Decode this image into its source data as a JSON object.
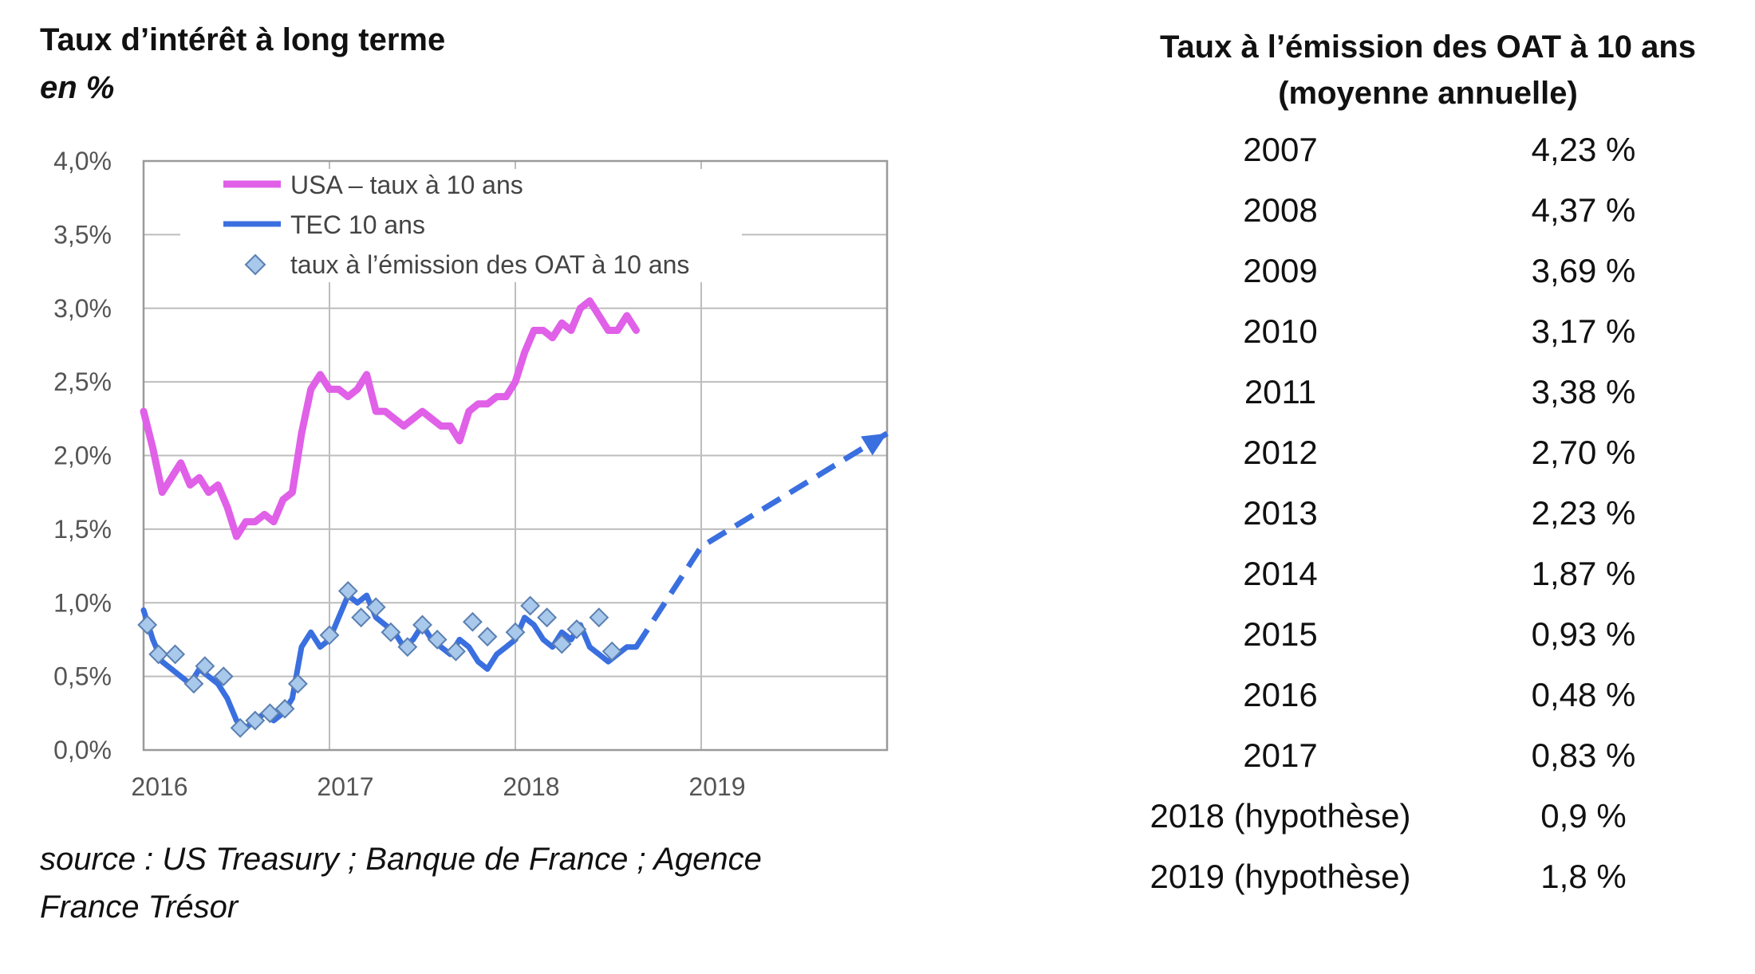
{
  "left": {
    "title": "Taux d’intérêt à long terme",
    "subtitle": "en %",
    "source_line1": "source :  US  Treasury ;  Banque  de  France ;  Agence",
    "source_line2": "France Trésor"
  },
  "chart_data": {
    "type": "line",
    "ylim": [
      0,
      4.0
    ],
    "xlim": [
      2016,
      2020
    ],
    "y_ticks": [
      "4,0%",
      "3,5%",
      "3,0%",
      "2,5%",
      "2,0%",
      "1,5%",
      "1,0%",
      "0,5%",
      "0,0%"
    ],
    "x_ticks": [
      "2016",
      "2017",
      "2018",
      "2019"
    ],
    "grid": true,
    "legend_position": "top-left",
    "colors": {
      "usa": "#e060e8",
      "tec": "#3a6fe0",
      "oat_marker": "#a8c8ec"
    },
    "series": [
      {
        "name": "USA – taux à 10 ans",
        "style": "solid",
        "points": [
          [
            2016.0,
            2.3
          ],
          [
            2016.05,
            2.05
          ],
          [
            2016.1,
            1.75
          ],
          [
            2016.15,
            1.85
          ],
          [
            2016.2,
            1.95
          ],
          [
            2016.25,
            1.8
          ],
          [
            2016.3,
            1.85
          ],
          [
            2016.35,
            1.75
          ],
          [
            2016.4,
            1.8
          ],
          [
            2016.45,
            1.65
          ],
          [
            2016.5,
            1.45
          ],
          [
            2016.55,
            1.55
          ],
          [
            2016.6,
            1.55
          ],
          [
            2016.65,
            1.6
          ],
          [
            2016.7,
            1.55
          ],
          [
            2016.75,
            1.7
          ],
          [
            2016.8,
            1.75
          ],
          [
            2016.85,
            2.15
          ],
          [
            2016.9,
            2.45
          ],
          [
            2016.95,
            2.55
          ],
          [
            2017.0,
            2.45
          ],
          [
            2017.05,
            2.45
          ],
          [
            2017.1,
            2.4
          ],
          [
            2017.15,
            2.45
          ],
          [
            2017.2,
            2.55
          ],
          [
            2017.25,
            2.3
          ],
          [
            2017.3,
            2.3
          ],
          [
            2017.35,
            2.25
          ],
          [
            2017.4,
            2.2
          ],
          [
            2017.45,
            2.25
          ],
          [
            2017.5,
            2.3
          ],
          [
            2017.55,
            2.25
          ],
          [
            2017.6,
            2.2
          ],
          [
            2017.65,
            2.2
          ],
          [
            2017.7,
            2.1
          ],
          [
            2017.75,
            2.3
          ],
          [
            2017.8,
            2.35
          ],
          [
            2017.85,
            2.35
          ],
          [
            2017.9,
            2.4
          ],
          [
            2017.95,
            2.4
          ],
          [
            2018.0,
            2.5
          ],
          [
            2018.05,
            2.7
          ],
          [
            2018.1,
            2.85
          ],
          [
            2018.15,
            2.85
          ],
          [
            2018.2,
            2.8
          ],
          [
            2018.25,
            2.9
          ],
          [
            2018.3,
            2.85
          ],
          [
            2018.35,
            3.0
          ],
          [
            2018.4,
            3.05
          ],
          [
            2018.45,
            2.95
          ],
          [
            2018.5,
            2.85
          ],
          [
            2018.55,
            2.85
          ],
          [
            2018.6,
            2.95
          ],
          [
            2018.65,
            2.85
          ]
        ]
      },
      {
        "name": "TEC 10 ans",
        "style": "solid",
        "points": [
          [
            2016.0,
            0.95
          ],
          [
            2016.05,
            0.75
          ],
          [
            2016.1,
            0.6
          ],
          [
            2016.15,
            0.55
          ],
          [
            2016.2,
            0.5
          ],
          [
            2016.25,
            0.45
          ],
          [
            2016.3,
            0.55
          ],
          [
            2016.35,
            0.5
          ],
          [
            2016.4,
            0.45
          ],
          [
            2016.45,
            0.35
          ],
          [
            2016.5,
            0.2
          ],
          [
            2016.55,
            0.15
          ],
          [
            2016.6,
            0.2
          ],
          [
            2016.65,
            0.25
          ],
          [
            2016.7,
            0.2
          ],
          [
            2016.75,
            0.25
          ],
          [
            2016.8,
            0.35
          ],
          [
            2016.85,
            0.7
          ],
          [
            2016.9,
            0.8
          ],
          [
            2016.95,
            0.7
          ],
          [
            2017.0,
            0.75
          ],
          [
            2017.05,
            0.9
          ],
          [
            2017.1,
            1.05
          ],
          [
            2017.15,
            1.0
          ],
          [
            2017.2,
            1.05
          ],
          [
            2017.25,
            0.9
          ],
          [
            2017.3,
            0.85
          ],
          [
            2017.35,
            0.8
          ],
          [
            2017.4,
            0.7
          ],
          [
            2017.45,
            0.75
          ],
          [
            2017.5,
            0.85
          ],
          [
            2017.55,
            0.75
          ],
          [
            2017.6,
            0.7
          ],
          [
            2017.65,
            0.65
          ],
          [
            2017.7,
            0.75
          ],
          [
            2017.75,
            0.7
          ],
          [
            2017.8,
            0.6
          ],
          [
            2017.85,
            0.55
          ],
          [
            2017.9,
            0.65
          ],
          [
            2017.95,
            0.7
          ],
          [
            2018.0,
            0.75
          ],
          [
            2018.05,
            0.9
          ],
          [
            2018.1,
            0.85
          ],
          [
            2018.15,
            0.75
          ],
          [
            2018.2,
            0.7
          ],
          [
            2018.25,
            0.8
          ],
          [
            2018.3,
            0.75
          ],
          [
            2018.35,
            0.85
          ],
          [
            2018.4,
            0.7
          ],
          [
            2018.45,
            0.65
          ],
          [
            2018.5,
            0.6
          ],
          [
            2018.55,
            0.65
          ],
          [
            2018.6,
            0.7
          ],
          [
            2018.65,
            0.7
          ]
        ]
      },
      {
        "name": "projection",
        "style": "dashed",
        "points": [
          [
            2018.65,
            0.7
          ],
          [
            2019.0,
            1.38
          ],
          [
            2020.0,
            2.15
          ]
        ]
      },
      {
        "name": "taux à l’émission  des OAT à 10 ans",
        "style": "markers",
        "points": [
          [
            2016.02,
            0.85
          ],
          [
            2016.08,
            0.65
          ],
          [
            2016.17,
            0.65
          ],
          [
            2016.27,
            0.45
          ],
          [
            2016.33,
            0.57
          ],
          [
            2016.43,
            0.5
          ],
          [
            2016.52,
            0.15
          ],
          [
            2016.6,
            0.2
          ],
          [
            2016.68,
            0.25
          ],
          [
            2016.76,
            0.28
          ],
          [
            2016.83,
            0.45
          ],
          [
            2017.0,
            0.78
          ],
          [
            2017.1,
            1.08
          ],
          [
            2017.17,
            0.9
          ],
          [
            2017.25,
            0.97
          ],
          [
            2017.33,
            0.8
          ],
          [
            2017.42,
            0.7
          ],
          [
            2017.5,
            0.85
          ],
          [
            2017.58,
            0.75
          ],
          [
            2017.68,
            0.67
          ],
          [
            2017.77,
            0.87
          ],
          [
            2017.85,
            0.77
          ],
          [
            2018.0,
            0.8
          ],
          [
            2018.08,
            0.98
          ],
          [
            2018.17,
            0.9
          ],
          [
            2018.25,
            0.72
          ],
          [
            2018.33,
            0.82
          ],
          [
            2018.45,
            0.9
          ],
          [
            2018.52,
            0.67
          ]
        ]
      }
    ]
  },
  "right": {
    "title_line1": "Taux à l’émission des OAT à 10 ans",
    "title_line2": "(moyenne annuelle)",
    "rows": [
      {
        "year": "2007",
        "value": "4,23 %"
      },
      {
        "year": "2008",
        "value": "4,37 %"
      },
      {
        "year": "2009",
        "value": "3,69 %"
      },
      {
        "year": "2010",
        "value": "3,17 %"
      },
      {
        "year": "2011",
        "value": "3,38 %"
      },
      {
        "year": "2012",
        "value": "2,70 %"
      },
      {
        "year": "2013",
        "value": "2,23 %"
      },
      {
        "year": "2014",
        "value": "1,87 %"
      },
      {
        "year": "2015",
        "value": "0,93 %"
      },
      {
        "year": "2016",
        "value": "0,48 %"
      },
      {
        "year": "2017",
        "value": "0,83 %"
      },
      {
        "year": "2018 (hypothèse)",
        "value": "0,9 %"
      },
      {
        "year": "2019 (hypothèse)",
        "value": "1,8 %"
      }
    ]
  }
}
